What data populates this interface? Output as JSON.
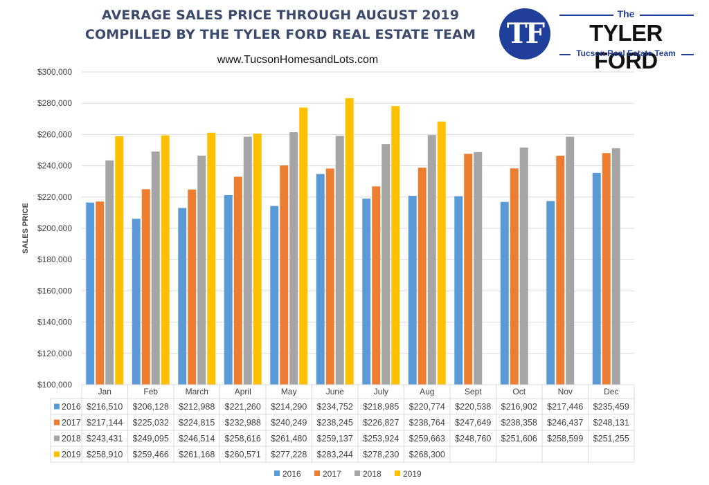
{
  "header": {
    "title_line1": "AVERAGE SALES PRICE THROUGH AUGUST 2019",
    "title_line2": "COMPILLED BY THE TYLER FORD REAL ESTATE TEAM",
    "url": "www.TucsonHomesandLots.com"
  },
  "logo": {
    "monogram": "TF",
    "the": "The",
    "name": "TYLER FORD",
    "tagline": "Tucson Real Estate Team",
    "color": "#1f3f9a"
  },
  "chart_data": {
    "type": "bar",
    "ylabel": "SALES PRICE",
    "ylim": [
      100000,
      300000
    ],
    "yticks": [
      100000,
      120000,
      140000,
      160000,
      180000,
      200000,
      220000,
      240000,
      260000,
      280000,
      300000
    ],
    "grid": true,
    "legend_position": "bottom",
    "categories": [
      "Jan",
      "Feb",
      "March",
      "April",
      "May",
      "June",
      "July",
      "Aug",
      "Sept",
      "Oct",
      "Nov",
      "Dec"
    ],
    "series": [
      {
        "name": "2016",
        "color": "#5b9bd5",
        "values": [
          216510,
          206128,
          212988,
          221260,
          214290,
          234752,
          218985,
          220774,
          220538,
          216902,
          217446,
          235459
        ]
      },
      {
        "name": "2017",
        "color": "#ed7d31",
        "values": [
          217144,
          225032,
          224815,
          232988,
          240249,
          238245,
          226827,
          238764,
          247649,
          238358,
          246437,
          248131
        ]
      },
      {
        "name": "2018",
        "color": "#a5a5a5",
        "values": [
          243431,
          249095,
          246514,
          258616,
          261480,
          259137,
          253924,
          259663,
          248760,
          251606,
          258599,
          251255
        ]
      },
      {
        "name": "2019",
        "color": "#ffc000",
        "values": [
          258910,
          259466,
          261168,
          260571,
          277228,
          283244,
          278230,
          268300,
          null,
          null,
          null,
          null
        ]
      }
    ]
  }
}
